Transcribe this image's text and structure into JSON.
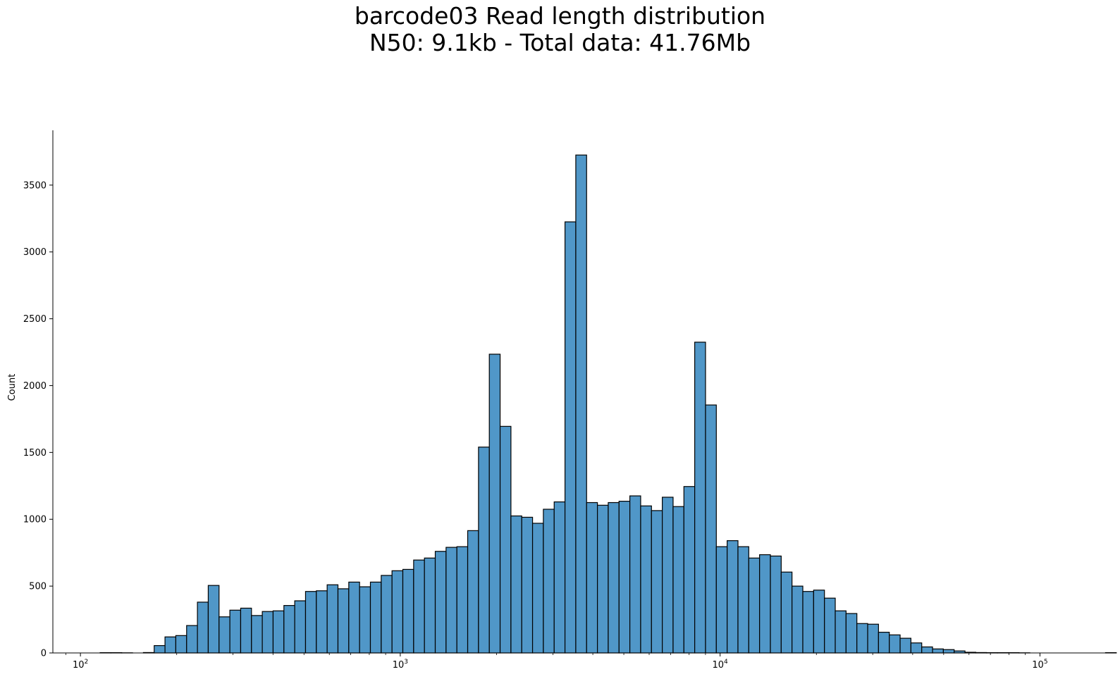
{
  "chart_data": {
    "type": "bar",
    "title": "barcode03 Read length distribution",
    "subtitle": "N50: 9.1kb - Total data: 41.76Mb",
    "xlabel": "",
    "ylabel": "Count",
    "x_scale": "log",
    "xlim": [
      82,
      170000
    ],
    "ylim": [
      0,
      3910
    ],
    "y_ticks": [
      0,
      500,
      1000,
      1500,
      2000,
      2500,
      3000,
      3500
    ],
    "x_ticks": [
      {
        "value": 100,
        "base": "10",
        "exp": "2"
      },
      {
        "value": 1000,
        "base": "10",
        "exp": "3"
      },
      {
        "value": 10000,
        "base": "10",
        "exp": "4"
      },
      {
        "value": 100000,
        "base": "10",
        "exp": "5"
      }
    ],
    "grid": false,
    "bar_color": "#5097c8",
    "edge_color": "#000000",
    "bins": {
      "log10_start": 2.0616,
      "log10_width": 0.0338,
      "counts": [
        2,
        2,
        1,
        0,
        3,
        55,
        120,
        130,
        205,
        380,
        505,
        270,
        320,
        335,
        280,
        310,
        315,
        355,
        390,
        460,
        465,
        510,
        480,
        530,
        495,
        530,
        580,
        615,
        625,
        695,
        710,
        760,
        790,
        795,
        915,
        1540,
        2235,
        1695,
        1025,
        1015,
        970,
        1075,
        1130,
        3225,
        3725,
        1125,
        1105,
        1125,
        1135,
        1175,
        1100,
        1065,
        1165,
        1095,
        1245,
        2325,
        1855,
        795,
        840,
        795,
        710,
        735,
        725,
        605,
        500,
        460,
        470,
        410,
        315,
        295,
        220,
        215,
        155,
        135,
        110,
        75,
        45,
        30,
        25,
        15,
        5,
        3,
        2,
        2,
        2,
        1,
        0,
        0,
        0,
        0,
        0,
        0,
        0,
        2
      ]
    }
  }
}
